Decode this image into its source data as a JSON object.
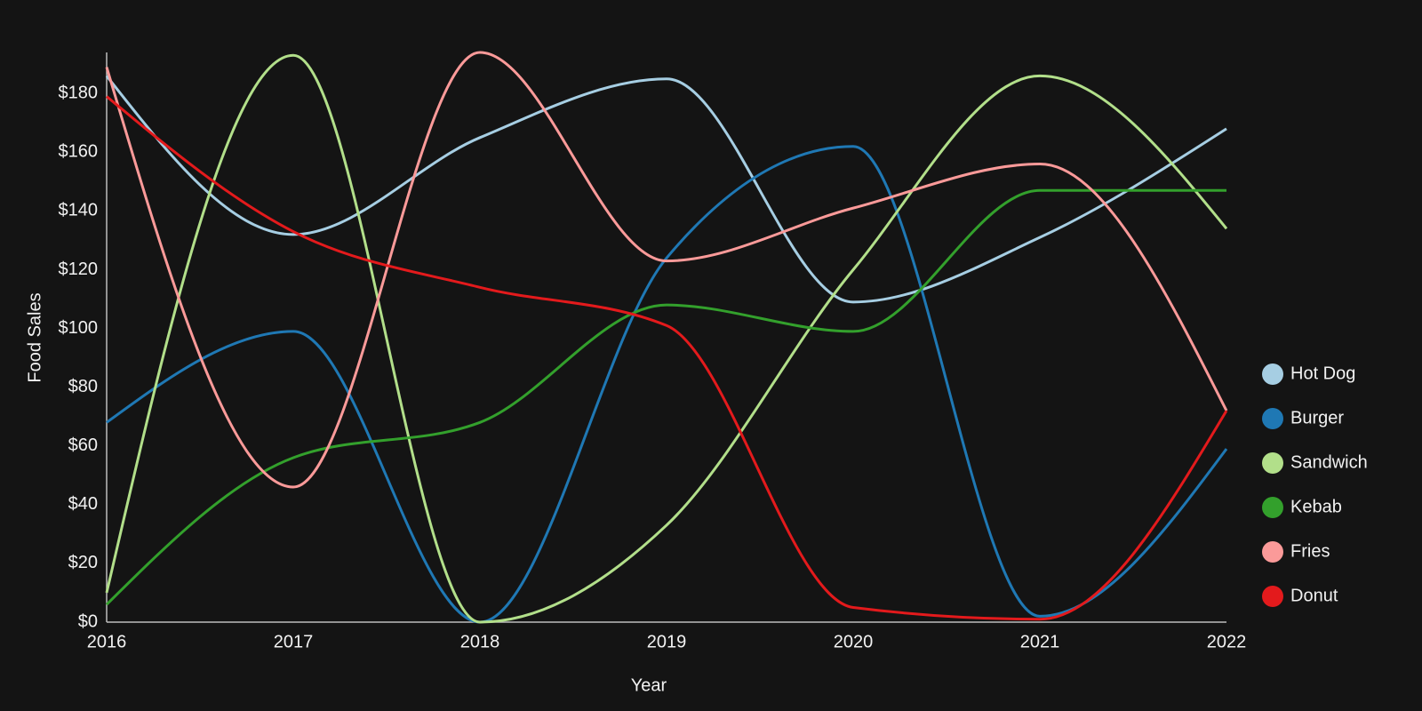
{
  "chart_data": {
    "type": "line",
    "x_label": "Year",
    "y_label": "Food Sales",
    "x": [
      2016,
      2017,
      2018,
      2019,
      2020,
      2021,
      2022
    ],
    "xlim": [
      2016,
      2022
    ],
    "xticks": [
      2016,
      2017,
      2018,
      2019,
      2020,
      2021,
      2022
    ],
    "ylim": [
      0,
      194
    ],
    "yticks": [
      {
        "value": 0,
        "label": "$0"
      },
      {
        "value": 20,
        "label": "$20"
      },
      {
        "value": 40,
        "label": "$40"
      },
      {
        "value": 60,
        "label": "$60"
      },
      {
        "value": 80,
        "label": "$80"
      },
      {
        "value": 100,
        "label": "$100"
      },
      {
        "value": 120,
        "label": "$120"
      },
      {
        "value": 140,
        "label": "$140"
      },
      {
        "value": 160,
        "label": "$160"
      },
      {
        "value": 180,
        "label": "$180"
      }
    ],
    "grid": false,
    "legend": "right",
    "series": [
      {
        "name": "Hot Dog",
        "color": "#a6cee3",
        "values": [
          186,
          132,
          165,
          185,
          109,
          131,
          168
        ]
      },
      {
        "name": "Burger",
        "color": "#1f78b4",
        "values": [
          68,
          99,
          0,
          124,
          162,
          2,
          59
        ]
      },
      {
        "name": "Sandwich",
        "color": "#b2df8a",
        "values": [
          10,
          193,
          0,
          33,
          120,
          186,
          134
        ]
      },
      {
        "name": "Kebab",
        "color": "#33a02c",
        "values": [
          6,
          56,
          68,
          108,
          99,
          147,
          147
        ]
      },
      {
        "name": "Fries",
        "color": "#fb9a99",
        "values": [
          189,
          46,
          194,
          123,
          141,
          156,
          72
        ]
      },
      {
        "name": "Donut",
        "color": "#e31a1c",
        "values": [
          179,
          133,
          114,
          101,
          5,
          1,
          72
        ]
      }
    ]
  }
}
